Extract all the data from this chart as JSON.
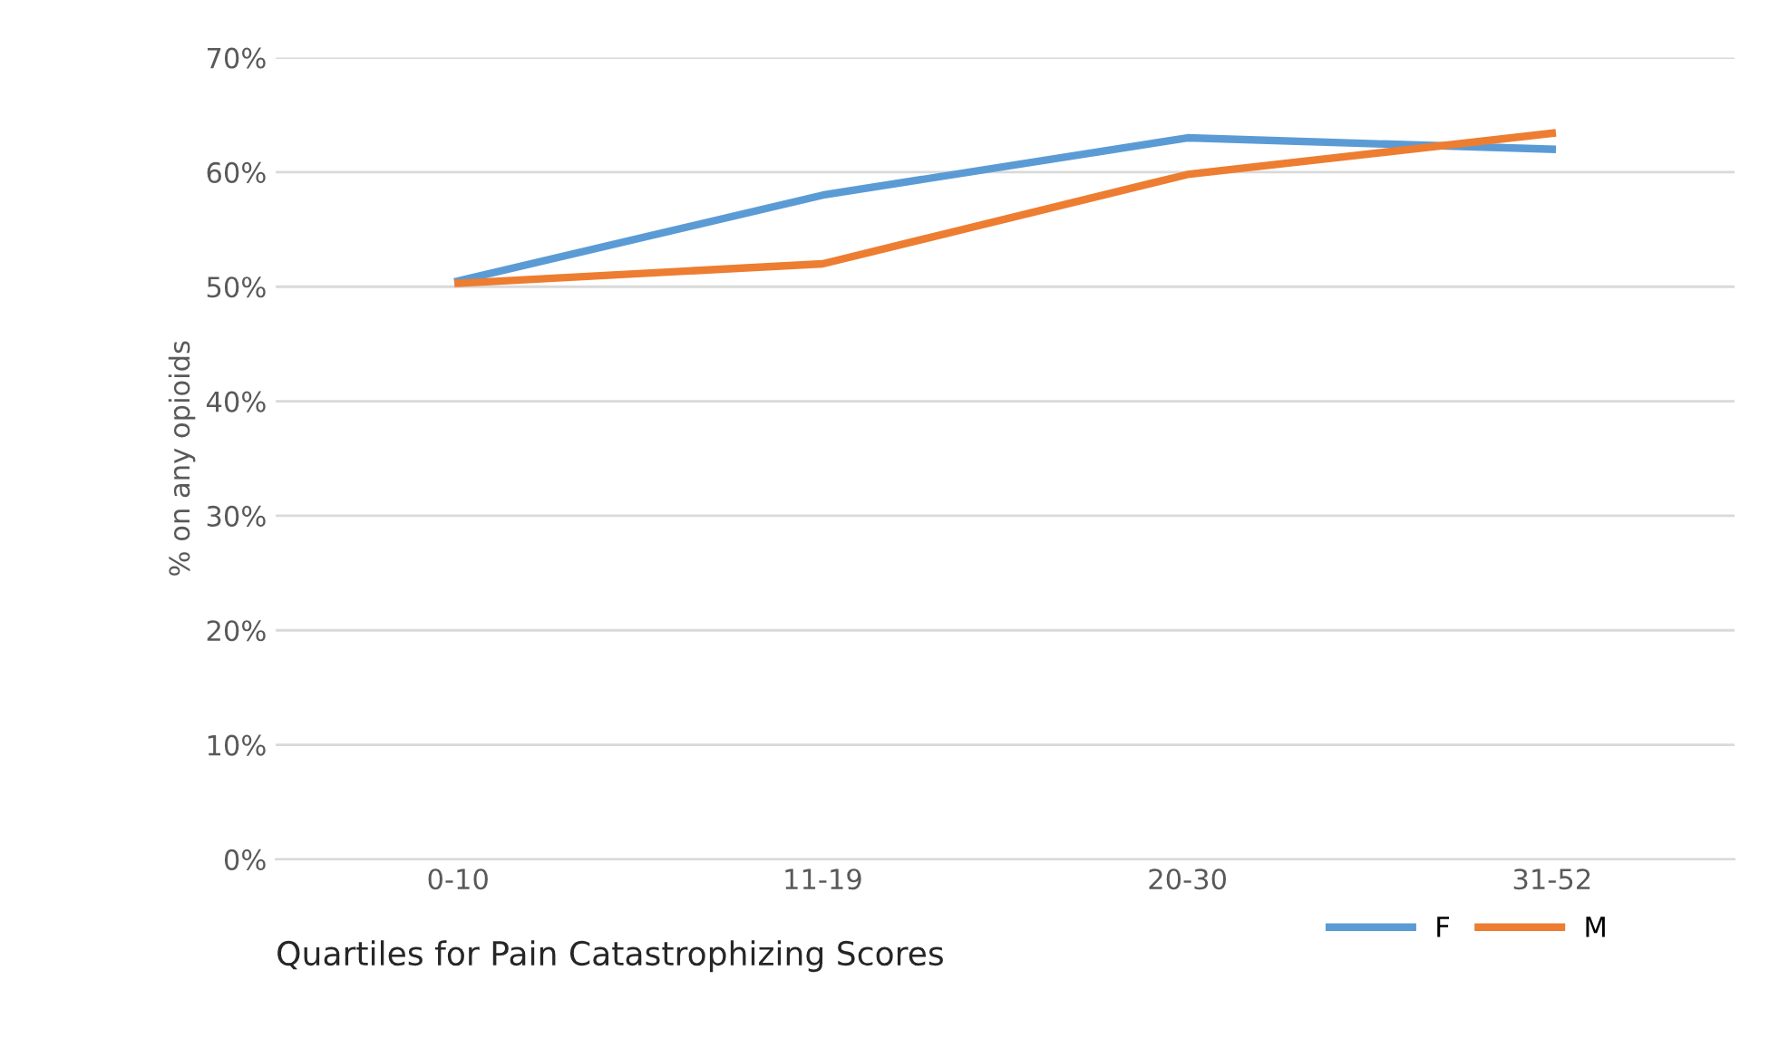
{
  "chart_data": {
    "type": "line",
    "xlabel": "Quartiles for Pain Catastrophizing Scores",
    "ylabel": "% on any opioids",
    "categories": [
      "0-10",
      "11-19",
      "20-30",
      "31-52"
    ],
    "series": [
      {
        "name": "F",
        "color": "#5b9bd5",
        "values": [
          50.5,
          58,
          63,
          62
        ]
      },
      {
        "name": "M",
        "color": "#ed7d31",
        "values": [
          50.3,
          52,
          59.8,
          63.4
        ]
      }
    ],
    "ylim": [
      0,
      70
    ],
    "yticks": [
      {
        "value": 0,
        "label": "0%"
      },
      {
        "value": 10,
        "label": "10%"
      },
      {
        "value": 20,
        "label": "20%"
      },
      {
        "value": 30,
        "label": "30%"
      },
      {
        "value": 40,
        "label": "40%"
      },
      {
        "value": 50,
        "label": "50%"
      },
      {
        "value": 60,
        "label": "60%"
      },
      {
        "value": 70,
        "label": "70%"
      }
    ],
    "grid": "y",
    "legend": "bottom right",
    "marker": "none",
    "line_style": "solid"
  }
}
